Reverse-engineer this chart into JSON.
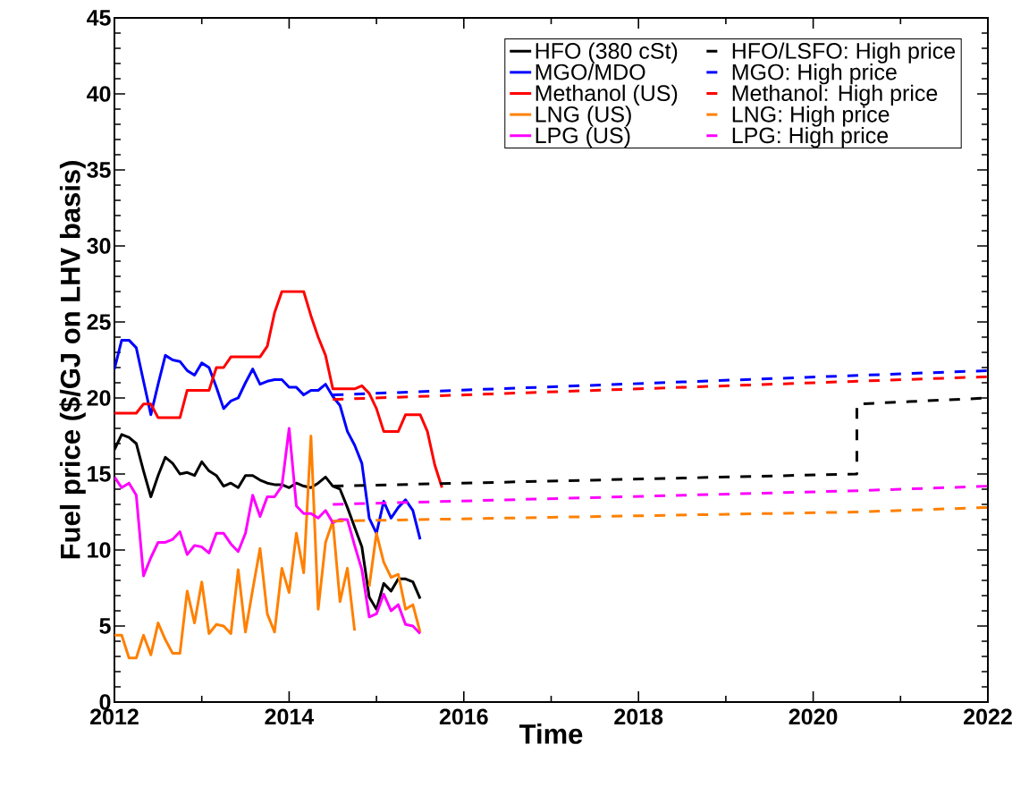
{
  "chart_data": {
    "type": "line",
    "xlabel": "Time",
    "ylabel": "Fuel price ($/GJ on LHV basis)",
    "xlim": [
      2012,
      2022
    ],
    "ylim": [
      0,
      45
    ],
    "xticks": [
      2012,
      2014,
      2016,
      2018,
      2020,
      2022
    ],
    "yticks": [
      0,
      5,
      10,
      15,
      20,
      25,
      30,
      35,
      40,
      45
    ],
    "grid": false,
    "legend": "top right",
    "marker": "none",
    "series": [
      {
        "name": "HFO (380 cSt)",
        "color": "#000000",
        "line_style": "solid",
        "x": [
          2012,
          2012.083,
          2012.167,
          2012.25,
          2012.333,
          2012.417,
          2012.5,
          2012.583,
          2012.667,
          2012.75,
          2012.833,
          2012.917,
          2013,
          2013.083,
          2013.167,
          2013.25,
          2013.333,
          2013.417,
          2013.5,
          2013.583,
          2013.667,
          2013.75,
          2013.833,
          2013.917,
          2014,
          2014.083,
          2014.167,
          2014.25,
          2014.333,
          2014.417,
          2014.5,
          2014.583,
          2014.667,
          2014.75,
          2014.833,
          2014.917,
          2015,
          2015.083,
          2015.167,
          2015.25,
          2015.333,
          2015.417,
          2015.5
        ],
        "values": [
          16.6,
          17.6,
          17.4,
          17.0,
          15.2,
          13.5,
          14.9,
          16.1,
          15.7,
          15.0,
          15.1,
          14.9,
          15.8,
          15.2,
          14.9,
          14.2,
          14.4,
          14.1,
          14.9,
          14.9,
          14.6,
          14.4,
          14.3,
          14.3,
          14.1,
          14.4,
          14.2,
          14.1,
          14.4,
          14.8,
          14.2,
          14.0,
          12.8,
          11.5,
          10.2,
          6.9,
          6.1,
          7.8,
          7.3,
          8.1,
          8.1,
          7.9,
          6.8
        ]
      },
      {
        "name": "MGO/MDO",
        "color": "#0000ff",
        "line_style": "solid",
        "x": [
          2012,
          2012.083,
          2012.167,
          2012.25,
          2012.333,
          2012.417,
          2012.5,
          2012.583,
          2012.667,
          2012.75,
          2012.833,
          2012.917,
          2013,
          2013.083,
          2013.167,
          2013.25,
          2013.333,
          2013.417,
          2013.5,
          2013.583,
          2013.667,
          2013.75,
          2013.833,
          2013.917,
          2014,
          2014.083,
          2014.167,
          2014.25,
          2014.333,
          2014.417,
          2014.5,
          2014.583,
          2014.667,
          2014.75,
          2014.833,
          2014.917,
          2015,
          2015.083,
          2015.167,
          2015.25,
          2015.333,
          2015.417,
          2015.5
        ],
        "values": [
          21.9,
          23.8,
          23.8,
          23.3,
          21.1,
          18.9,
          20.9,
          22.8,
          22.5,
          22.4,
          21.8,
          21.5,
          22.3,
          22.0,
          20.7,
          19.3,
          19.8,
          20.0,
          21.0,
          21.9,
          20.9,
          21.1,
          21.2,
          21.2,
          20.7,
          20.7,
          20.2,
          20.5,
          20.5,
          20.9,
          20.1,
          19.5,
          17.8,
          16.9,
          15.7,
          12.1,
          11.1,
          13.2,
          12.1,
          12.8,
          13.3,
          12.6,
          10.7
        ]
      },
      {
        "name": "Methanol (US)",
        "color": "#ff0000",
        "line_style": "solid",
        "x": [
          2012,
          2012.083,
          2012.167,
          2012.25,
          2012.333,
          2012.417,
          2012.5,
          2012.583,
          2012.667,
          2012.75,
          2012.833,
          2012.917,
          2013,
          2013.083,
          2013.167,
          2013.25,
          2013.333,
          2013.417,
          2013.5,
          2013.583,
          2013.667,
          2013.75,
          2013.833,
          2013.917,
          2014,
          2014.083,
          2014.167,
          2014.25,
          2014.333,
          2014.417,
          2014.5,
          2014.583,
          2014.667,
          2014.75,
          2014.833,
          2014.917,
          2015,
          2015.083,
          2015.167,
          2015.25,
          2015.333,
          2015.417,
          2015.5,
          2015.583,
          2015.667,
          2015.75
        ],
        "values": [
          19.0,
          19.0,
          19.0,
          19.0,
          19.6,
          19.6,
          18.7,
          18.7,
          18.7,
          18.7,
          20.5,
          20.5,
          20.5,
          20.5,
          22.0,
          22.0,
          22.7,
          22.7,
          22.7,
          22.7,
          22.7,
          23.4,
          25.6,
          27.0,
          27.0,
          27.0,
          27.0,
          25.4,
          24.0,
          22.8,
          20.6,
          20.6,
          20.6,
          20.6,
          20.8,
          20.3,
          19.3,
          17.8,
          17.8,
          17.8,
          18.9,
          18.9,
          18.9,
          17.8,
          15.6,
          14.1
        ]
      },
      {
        "name": "LNG (US)",
        "color": "#ff8000",
        "line_style": "solid",
        "x": [
          2012,
          2012.083,
          2012.167,
          2012.25,
          2012.333,
          2012.417,
          2012.5,
          2012.583,
          2012.667,
          2012.75,
          2012.833,
          2012.917,
          2013,
          2013.083,
          2013.167,
          2013.25,
          2013.333,
          2013.417,
          2013.5,
          2013.583,
          2013.667,
          2013.75,
          2013.833,
          2013.917,
          2014,
          2014.083,
          2014.167,
          2014.25,
          2014.333,
          2014.417,
          2014.5,
          2014.583,
          2014.667,
          2014.75,
          2014.833,
          2014.917,
          2015,
          2015.083,
          2015.167,
          2015.25,
          2015.333,
          2015.417,
          2015.5
        ],
        "values": [
          4.4,
          4.4,
          2.9,
          2.9,
          4.4,
          3.1,
          5.2,
          4.1,
          3.2,
          3.2,
          7.3,
          5.2,
          7.9,
          4.5,
          5.1,
          5.0,
          4.5,
          8.7,
          4.6,
          7.4,
          10.1,
          5.8,
          4.6,
          8.8,
          7.2,
          11.1,
          8.5,
          17.5,
          6.1,
          10.5,
          11.9,
          6.6,
          8.8,
          4.7,
          null,
          7.6,
          11.1,
          9.2,
          8.2,
          8.4,
          6.1,
          6.4,
          4.6
        ]
      },
      {
        "name": "LPG (US)",
        "color": "#ff00ff",
        "line_style": "solid",
        "x": [
          2012,
          2012.083,
          2012.167,
          2012.25,
          2012.333,
          2012.417,
          2012.5,
          2012.583,
          2012.667,
          2012.75,
          2012.833,
          2012.917,
          2013,
          2013.083,
          2013.167,
          2013.25,
          2013.333,
          2013.417,
          2013.5,
          2013.583,
          2013.667,
          2013.75,
          2013.833,
          2013.917,
          2014,
          2014.083,
          2014.167,
          2014.25,
          2014.333,
          2014.417,
          2014.5,
          2014.583,
          2014.667,
          2014.75,
          2014.833,
          2014.917,
          2015,
          2015.083,
          2015.167,
          2015.25,
          2015.333,
          2015.417,
          2015.5
        ],
        "values": [
          14.8,
          14.1,
          14.4,
          13.6,
          8.3,
          9.5,
          10.5,
          10.5,
          10.7,
          11.2,
          9.7,
          10.3,
          10.2,
          9.8,
          11.1,
          11.1,
          10.4,
          9.9,
          11.1,
          13.6,
          12.2,
          13.5,
          13.5,
          14.2,
          18.0,
          12.9,
          12.4,
          12.4,
          12.1,
          12.6,
          11.8,
          12.0,
          12.0,
          10.3,
          8.7,
          5.6,
          5.8,
          7.1,
          6.0,
          6.4,
          5.1,
          5.0,
          4.5
        ]
      },
      {
        "name": "HFO/LSFO: High price",
        "color": "#000000",
        "line_style": "dashed",
        "x": [
          2014.5,
          2020.5,
          2020.5,
          2022
        ],
        "values": [
          14.2,
          15.0,
          19.6,
          20.0
        ]
      },
      {
        "name": "MGO: High price",
        "color": "#0000ff",
        "line_style": "dashed",
        "x": [
          2014.5,
          2022
        ],
        "values": [
          20.2,
          21.8
        ]
      },
      {
        "name": "Methanol: High price",
        "color": "#ff0000",
        "line_style": "dashed",
        "x": [
          2014.5,
          2022
        ],
        "values": [
          19.9,
          21.4
        ]
      },
      {
        "name": "LNG: High price",
        "color": "#ff8000",
        "line_style": "dashed",
        "x": [
          2014.5,
          2020.5,
          2022
        ],
        "values": [
          11.9,
          12.5,
          12.8
        ]
      },
      {
        "name": "LPG: High price",
        "color": "#ff00ff",
        "line_style": "dashed",
        "x": [
          2014.5,
          2020.5,
          2022
        ],
        "values": [
          13.0,
          13.9,
          14.2
        ]
      }
    ]
  }
}
